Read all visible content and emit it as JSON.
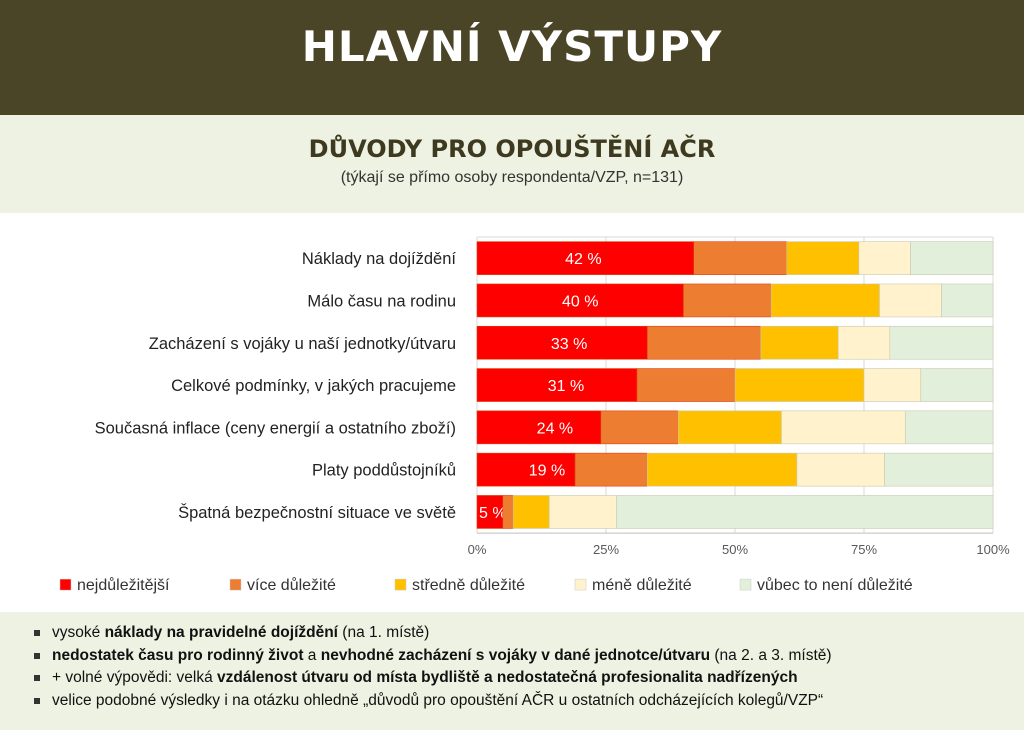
{
  "header": {
    "title": "HLAVNÍ VÝSTUPY"
  },
  "subtitle": {
    "title": "DŮVODY PRO OPOUŠTĚNÍ AČR",
    "note": "(týkají se přímo osoby respondenta/VZP, n=131)"
  },
  "chart_data": {
    "type": "bar",
    "orientation": "horizontal",
    "stacked": "100%",
    "categories": [
      "Náklady na dojíždění",
      "Málo času na rodinu",
      "Zacházení s vojáky u naší jednotky/útvaru",
      "Celkové podmínky, v jakých pracujeme",
      "Současná inflace (ceny energií a ostatního zboží)",
      "Platy poddůstojníků",
      "Špatná bezpečnostní situace ve světě"
    ],
    "series": [
      {
        "name": "nejdůležitější",
        "color": "#ff0000",
        "values": [
          42,
          40,
          33,
          31,
          24,
          19,
          5
        ],
        "labels": [
          "42 %",
          "40 %",
          "33 %",
          "31 %",
          "24 %",
          "19 %",
          "5 %"
        ]
      },
      {
        "name": "více důležité",
        "color": "#ed7d31",
        "values": [
          18,
          17,
          22,
          19,
          15,
          14,
          2
        ]
      },
      {
        "name": "středně důležité",
        "color": "#ffc000",
        "values": [
          14,
          21,
          15,
          25,
          20,
          29,
          7
        ]
      },
      {
        "name": "méně důležité",
        "color": "#fff2cc",
        "values": [
          10,
          12,
          10,
          11,
          24,
          17,
          13
        ]
      },
      {
        "name": "vůbec to není důležité",
        "color": "#e2efda",
        "values": [
          16,
          10,
          20,
          14,
          17,
          21,
          73
        ]
      }
    ],
    "xticks": [
      "0%",
      "25%",
      "50%",
      "75%",
      "100%"
    ],
    "xlim": [
      0,
      100
    ],
    "grid": true,
    "legend": "bottom"
  },
  "bullets": [
    [
      {
        "t": "vysoké ",
        "b": false
      },
      {
        "t": "náklady na pravidelné dojíždění",
        "b": true
      },
      {
        "t": " (na 1. místě)",
        "b": false
      }
    ],
    [
      {
        "t": "nedostatek času pro rodinný život",
        "b": true
      },
      {
        "t": " a ",
        "b": false
      },
      {
        "t": "nevhodné zacházení s vojáky v dané jednotce/útvaru",
        "b": true
      },
      {
        "t": " (na 2. a 3. místě)",
        "b": false
      }
    ],
    [
      {
        "t": "+ volné výpovědi: velká ",
        "b": false
      },
      {
        "t": "vzdálenost útvaru od místa bydliště a nedostatečná profesionalita nadřízených",
        "b": true
      }
    ],
    [
      {
        "t": "velice podobné výsledky i na otázku ohledně „důvodů pro opouštění AČR u ostatních odcházejících kolegů/VZP“",
        "b": false
      }
    ]
  ]
}
